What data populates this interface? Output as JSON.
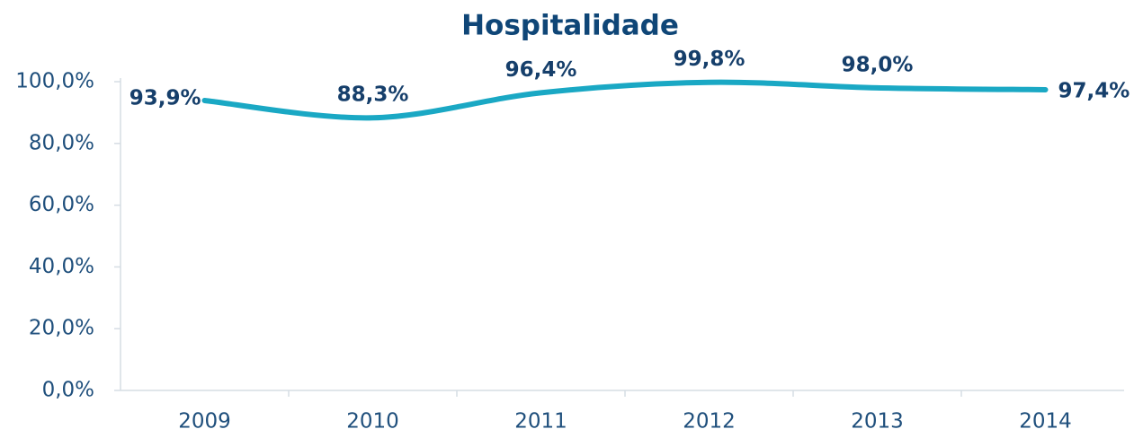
{
  "chart_data": {
    "type": "line",
    "title": "Hospitalidade",
    "categories": [
      "2009",
      "2010",
      "2011",
      "2012",
      "2013",
      "2014"
    ],
    "series": [
      {
        "name": "Hospitalidade",
        "color": "#1aa8c4",
        "values": [
          93.9,
          88.3,
          96.4,
          99.8,
          98.0,
          97.4
        ],
        "value_labels": [
          "93,9%",
          "88,3%",
          "96,4%",
          "99,8%",
          "98,0%",
          "97,4%"
        ]
      }
    ],
    "ylim": [
      0,
      100
    ],
    "yticks": [
      {
        "value": 0,
        "label": "0,0%"
      },
      {
        "value": 20,
        "label": "20,0%"
      },
      {
        "value": 40,
        "label": "40,0%"
      },
      {
        "value": 60,
        "label": "60,0%"
      },
      {
        "value": 80,
        "label": "80,0%"
      },
      {
        "value": 100,
        "label": "100,0%"
      }
    ],
    "smooth": true,
    "grid": false
  }
}
